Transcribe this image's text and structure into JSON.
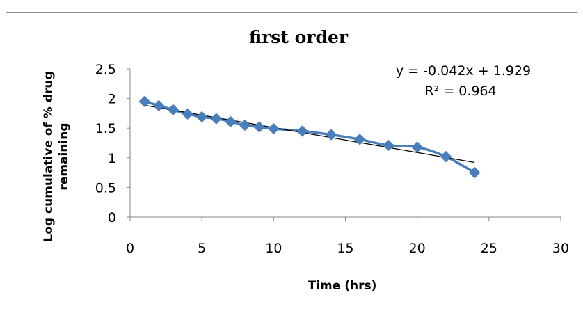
{
  "chart_data": {
    "type": "line",
    "title": "first order",
    "xlabel": "Time (hrs)",
    "ylabel_lines": [
      "Log cumulative of % drug",
      "remaining"
    ],
    "xlim": [
      0,
      30
    ],
    "ylim": [
      0,
      2.5
    ],
    "x_ticks": [
      0,
      5,
      10,
      15,
      20,
      25,
      30
    ],
    "y_ticks": [
      0,
      0.5,
      1,
      1.5,
      2,
      2.5
    ],
    "x_tick_labels": [
      "0",
      "5",
      "10",
      "15",
      "20",
      "25",
      "30"
    ],
    "y_tick_labels": [
      "0",
      "0.5",
      "1",
      "1.5",
      "2",
      "2.5"
    ],
    "grid": false,
    "series": [
      {
        "x": [
          1,
          2,
          3,
          4,
          5,
          6,
          7,
          8,
          9,
          10,
          12,
          14,
          16,
          18,
          20,
          22,
          24
        ],
        "y": [
          1.95,
          1.88,
          1.81,
          1.74,
          1.69,
          1.66,
          1.61,
          1.55,
          1.52,
          1.49,
          1.45,
          1.39,
          1.31,
          1.21,
          1.18,
          1.02,
          0.75
        ],
        "color": "#4a7ebb"
      }
    ],
    "trendline": {
      "slope": -0.042,
      "intercept": 1.929,
      "x_range": [
        1,
        24
      ],
      "color": "#000000",
      "equation_text": "y = -0.042x + 1.929",
      "r2_text": "R² = 0.964"
    }
  }
}
